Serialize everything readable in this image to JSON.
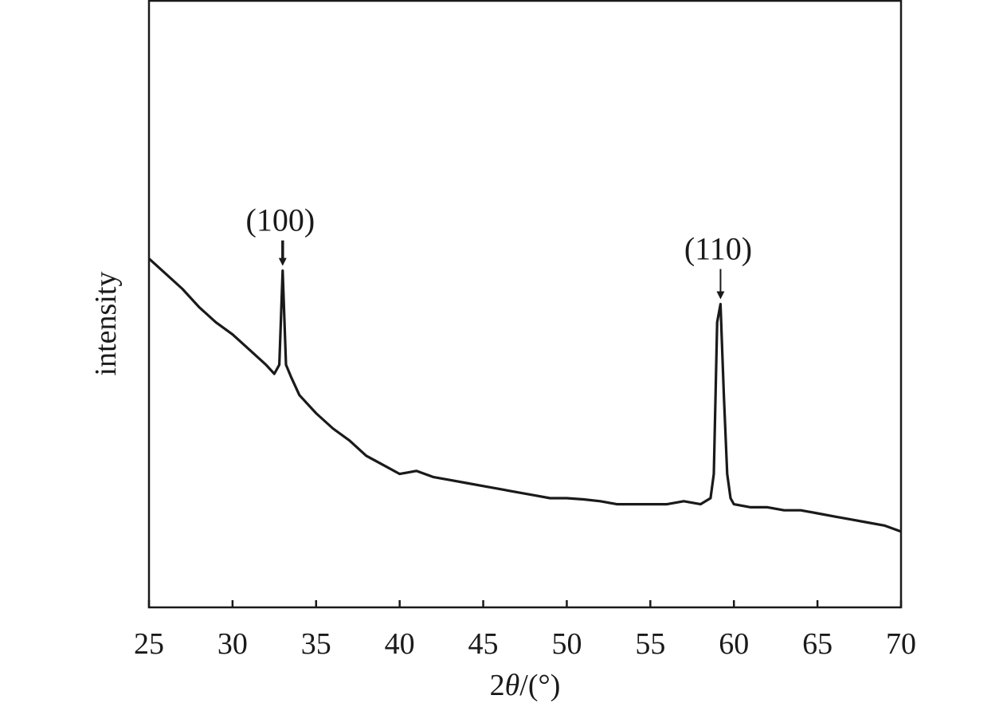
{
  "chart_data": {
    "type": "line",
    "title": "",
    "xlabel_prefix": "2",
    "xlabel_symbol": "θ",
    "xlabel_suffix": "/(°)",
    "ylabel": "intensity",
    "xlim": [
      25,
      70
    ],
    "ylim": [
      0,
      100
    ],
    "x_ticks": [
      25,
      30,
      35,
      40,
      45,
      50,
      55,
      60,
      65,
      70
    ],
    "x_tick_labels": [
      "25",
      "30",
      "35",
      "40",
      "45",
      "50",
      "55",
      "60",
      "65",
      "70"
    ],
    "y_tick_labels_shown": false,
    "grid": false,
    "legend": "none",
    "line_color": "#1a1a1a",
    "series": [
      {
        "points": [
          [
            25,
            57.5
          ],
          [
            26,
            55.0
          ],
          [
            27,
            52.5
          ],
          [
            28,
            49.5
          ],
          [
            29,
            47.0
          ],
          [
            30,
            45.0
          ],
          [
            31,
            42.5
          ],
          [
            32,
            40.0
          ],
          [
            32.5,
            38.5
          ],
          [
            32.8,
            40.0
          ],
          [
            33.0,
            55.5
          ],
          [
            33.2,
            40.0
          ],
          [
            33.5,
            38.0
          ],
          [
            34,
            35.0
          ],
          [
            35,
            32.0
          ],
          [
            36,
            29.5
          ],
          [
            37,
            27.5
          ],
          [
            38,
            25.0
          ],
          [
            39,
            23.5
          ],
          [
            40,
            22.0
          ],
          [
            41,
            22.5
          ],
          [
            42,
            21.5
          ],
          [
            43,
            21.0
          ],
          [
            44,
            20.5
          ],
          [
            45,
            20.0
          ],
          [
            46,
            19.5
          ],
          [
            47,
            19.0
          ],
          [
            48,
            18.5
          ],
          [
            49,
            18.0
          ],
          [
            50,
            18.0
          ],
          [
            51,
            17.8
          ],
          [
            52,
            17.5
          ],
          [
            53,
            17.0
          ],
          [
            54,
            17.0
          ],
          [
            55,
            17.0
          ],
          [
            56,
            17.0
          ],
          [
            57,
            17.5
          ],
          [
            58,
            17.0
          ],
          [
            58.6,
            18.0
          ],
          [
            58.8,
            22.0
          ],
          [
            59.0,
            47.0
          ],
          [
            59.2,
            50.0
          ],
          [
            59.4,
            35.0
          ],
          [
            59.6,
            22.0
          ],
          [
            59.8,
            18.0
          ],
          [
            60,
            17.0
          ],
          [
            61,
            16.5
          ],
          [
            62,
            16.5
          ],
          [
            63,
            16.0
          ],
          [
            64,
            16.0
          ],
          [
            65,
            15.5
          ],
          [
            66,
            15.0
          ],
          [
            67,
            14.5
          ],
          [
            68,
            14.0
          ],
          [
            69,
            13.5
          ],
          [
            70,
            12.5
          ]
        ]
      }
    ],
    "annotations": [
      {
        "text": "(100)",
        "x": 33.0,
        "y": 55.5,
        "arrow": "down",
        "arrow_style": "bold"
      },
      {
        "text": "(110)",
        "x": 59.2,
        "y": 50.0,
        "arrow": "down",
        "arrow_style": "thin"
      }
    ]
  }
}
